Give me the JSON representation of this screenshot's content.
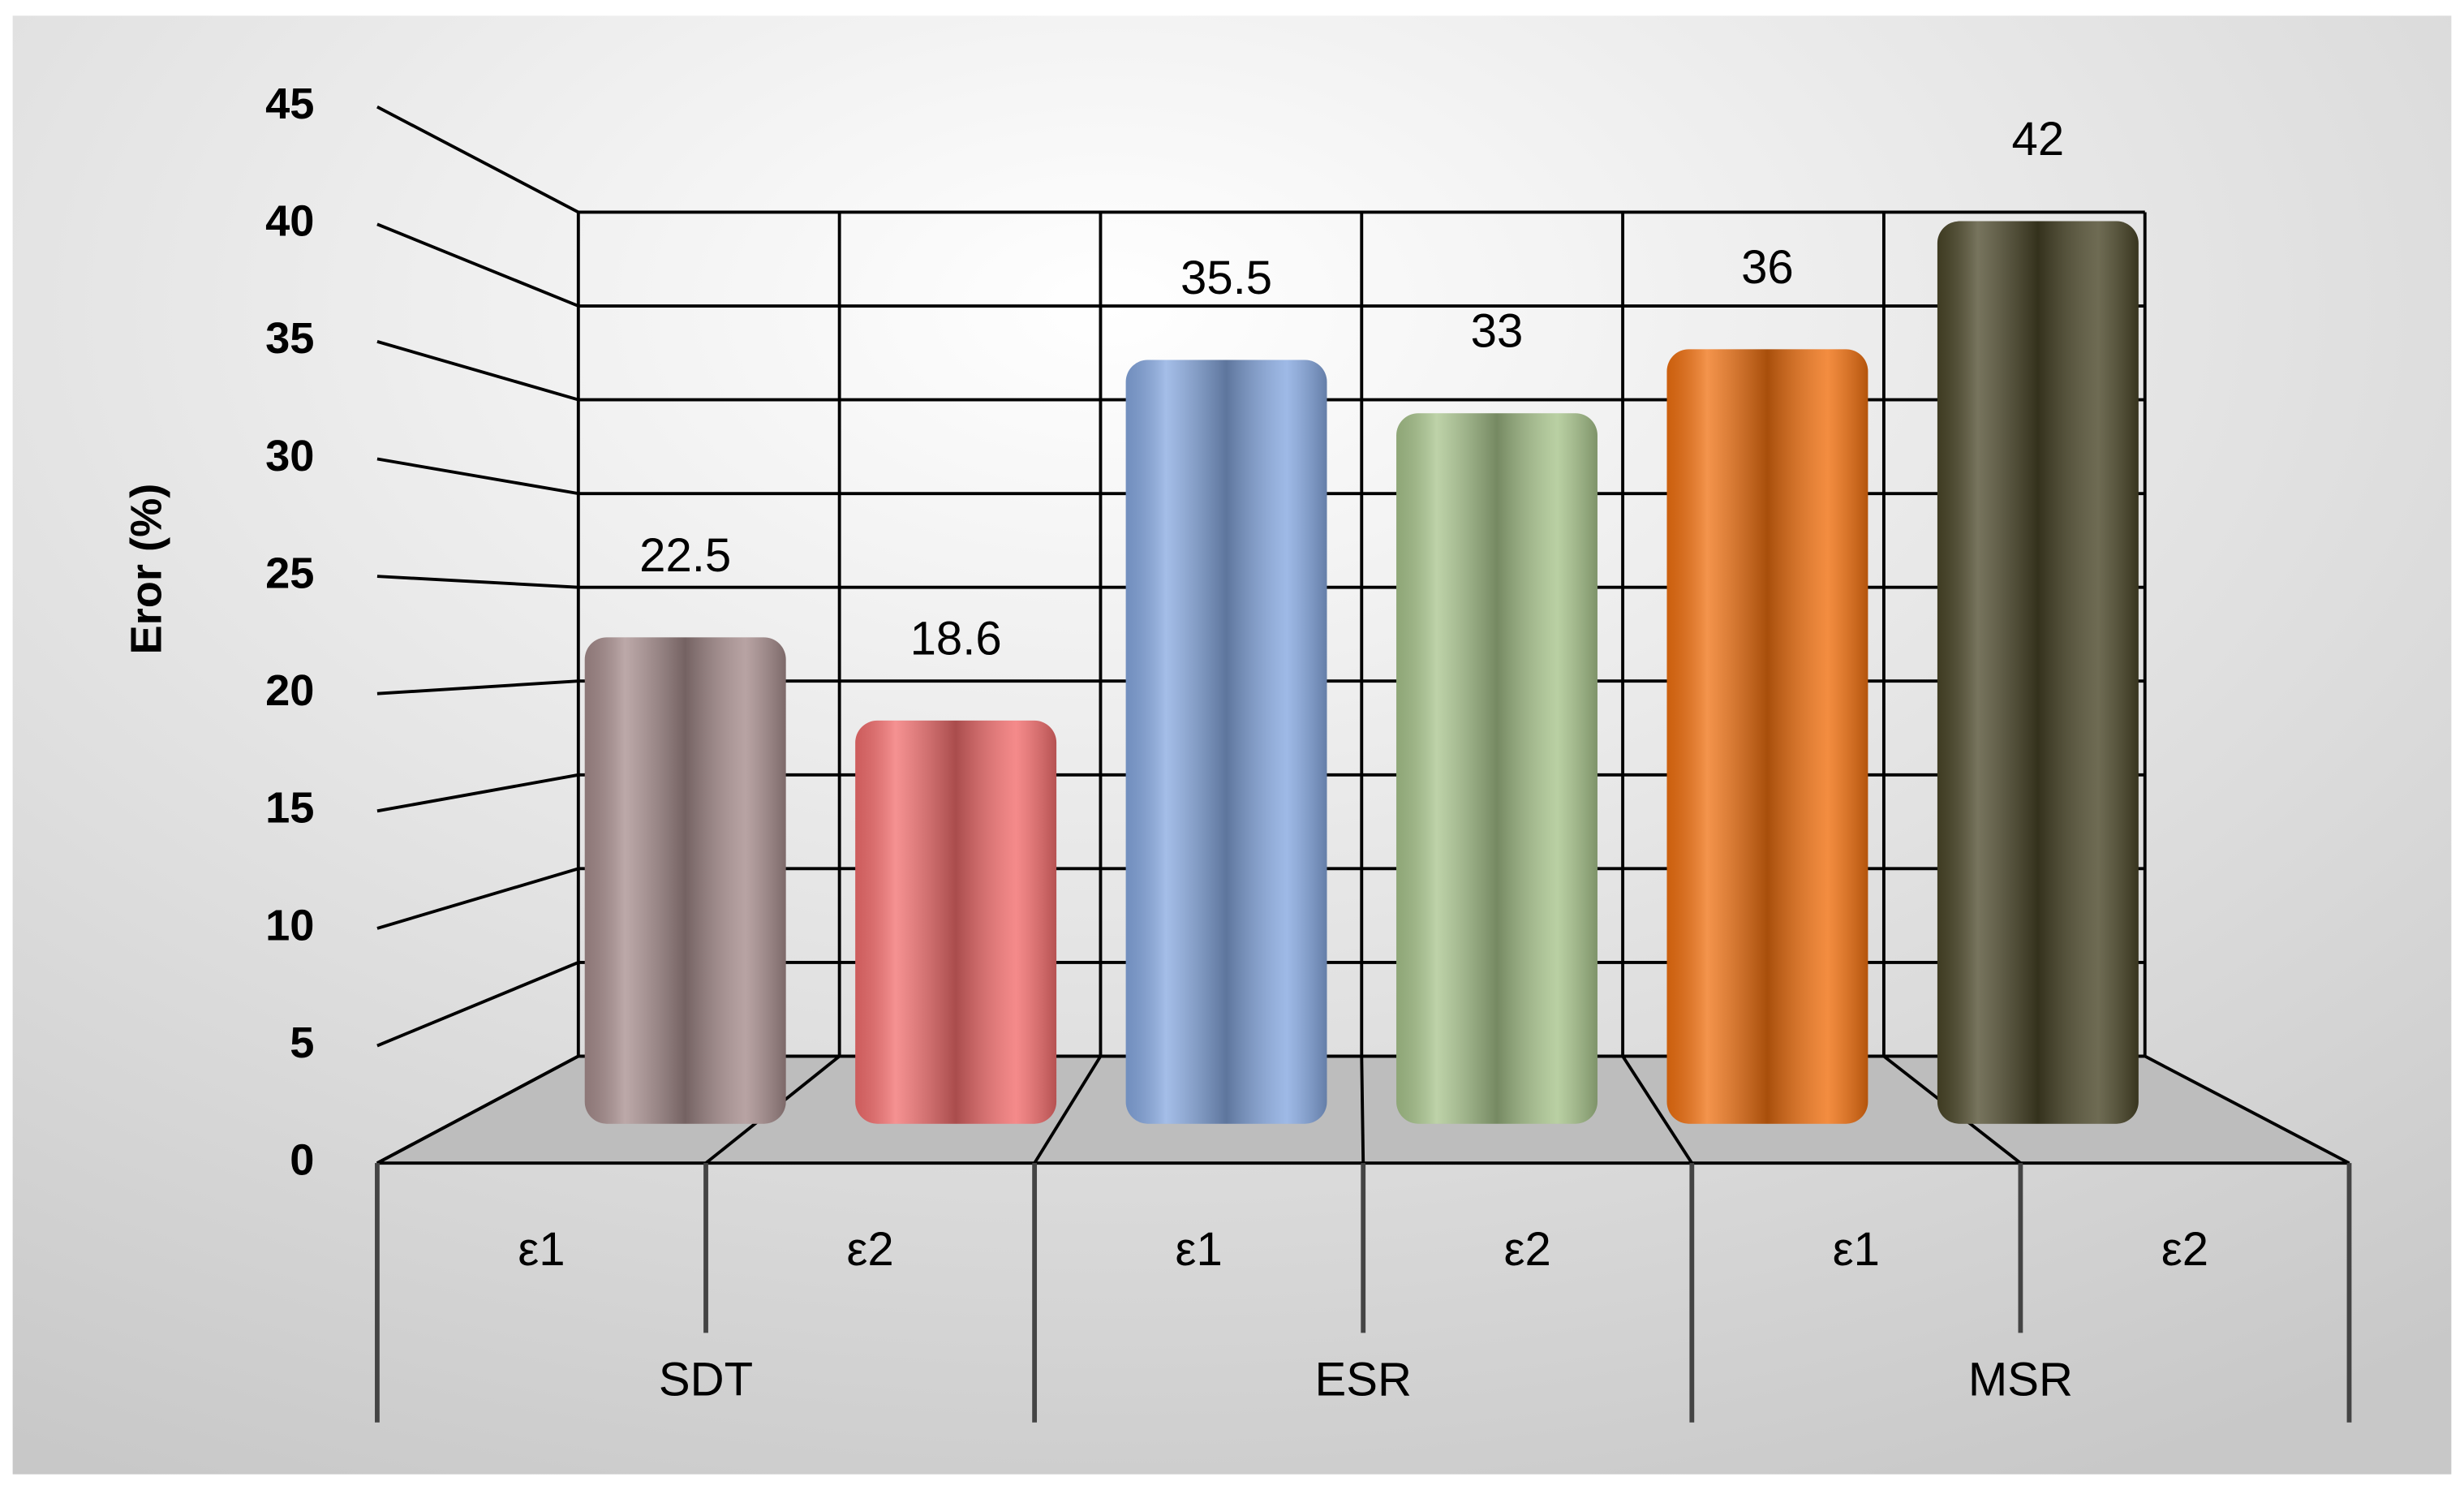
{
  "chart_data": {
    "type": "bar",
    "y_axis_label": "Eror (%)",
    "categories": [
      "ε1",
      "ε2",
      "ε1",
      "ε2",
      "ε1",
      "ε2"
    ],
    "groups": [
      "SDT",
      "ESR",
      "MSR"
    ],
    "values": [
      22.5,
      18.6,
      35.5,
      33,
      36,
      42
    ],
    "colors": [
      "#a68c8c",
      "#f26d6d",
      "#86a8e0",
      "#a8c48c",
      "#f07010",
      "#4a4628"
    ],
    "ylim": [
      0,
      45
    ],
    "yticks": [
      0,
      5,
      10,
      15,
      20,
      25,
      30,
      35,
      40,
      45
    ],
    "grid": true
  }
}
